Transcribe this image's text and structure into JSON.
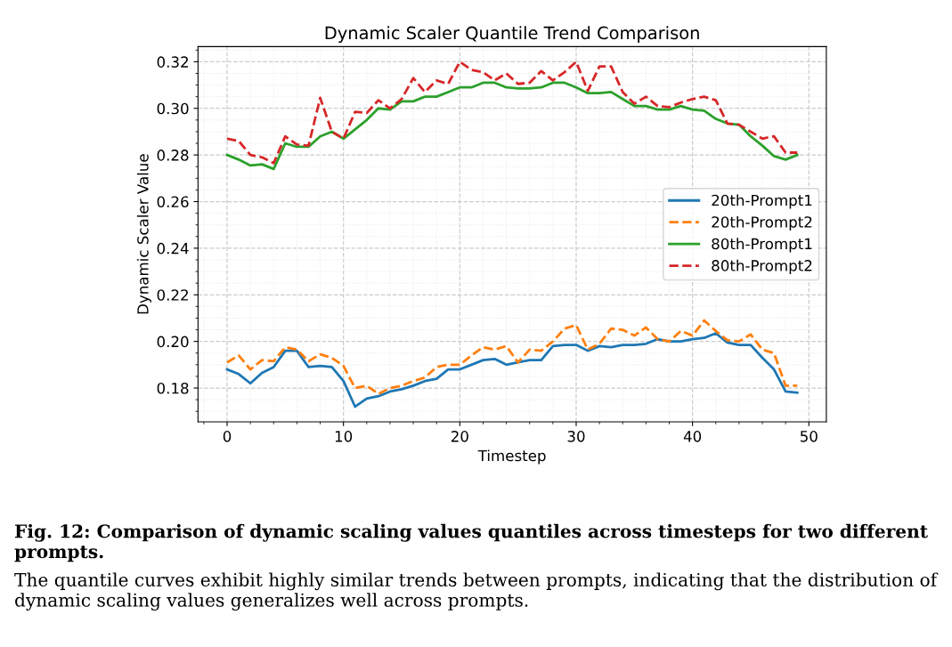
{
  "chart_data": {
    "type": "line",
    "title": "Dynamic Scaler Quantile Trend Comparison",
    "xlabel": "Timestep",
    "ylabel": "Dynamic Scaler Value",
    "x": [
      0,
      1,
      2,
      3,
      4,
      5,
      6,
      7,
      8,
      9,
      10,
      11,
      12,
      13,
      14,
      15,
      16,
      17,
      18,
      19,
      20,
      21,
      22,
      23,
      24,
      25,
      26,
      27,
      28,
      29,
      30,
      31,
      32,
      33,
      34,
      35,
      36,
      37,
      38,
      39,
      40,
      41,
      42,
      43,
      44,
      45,
      46,
      47,
      48,
      49
    ],
    "series": [
      {
        "name": "20th-Prompt1",
        "color": "#1f77b4",
        "line_style": "solid",
        "values": [
          0.188,
          0.186,
          0.182,
          0.1865,
          0.189,
          0.196,
          0.196,
          0.189,
          0.1895,
          0.189,
          0.183,
          0.172,
          0.1755,
          0.1765,
          0.1785,
          0.1795,
          0.181,
          0.183,
          0.184,
          0.188,
          0.188,
          0.19,
          0.192,
          0.1925,
          0.19,
          0.191,
          0.192,
          0.192,
          0.198,
          0.1985,
          0.1985,
          0.196,
          0.198,
          0.1975,
          0.1985,
          0.1985,
          0.199,
          0.201,
          0.2,
          0.2,
          0.201,
          0.2015,
          0.2035,
          0.1995,
          0.1985,
          0.1985,
          0.193,
          0.188,
          0.1785,
          0.178
        ]
      },
      {
        "name": "20th-Prompt2",
        "color": "#ff7f0e",
        "line_style": "dashed",
        "values": [
          0.191,
          0.194,
          0.188,
          0.192,
          0.1915,
          0.1975,
          0.1965,
          0.1915,
          0.1945,
          0.193,
          0.1895,
          0.18,
          0.181,
          0.1775,
          0.18,
          0.181,
          0.183,
          0.1845,
          0.189,
          0.19,
          0.19,
          0.194,
          0.1975,
          0.1965,
          0.198,
          0.191,
          0.1965,
          0.196,
          0.2,
          0.2055,
          0.207,
          0.1965,
          0.199,
          0.2055,
          0.205,
          0.2025,
          0.206,
          0.201,
          0.2,
          0.2045,
          0.2025,
          0.209,
          0.2045,
          0.2005,
          0.2,
          0.203,
          0.1965,
          0.195,
          0.181,
          0.181
        ]
      },
      {
        "name": "80th-Prompt1",
        "color": "#2ca02c",
        "line_style": "solid",
        "values": [
          0.28,
          0.278,
          0.2755,
          0.276,
          0.274,
          0.285,
          0.2835,
          0.2835,
          0.288,
          0.29,
          0.287,
          0.291,
          0.295,
          0.3,
          0.2995,
          0.303,
          0.303,
          0.305,
          0.305,
          0.307,
          0.309,
          0.309,
          0.311,
          0.311,
          0.309,
          0.3085,
          0.3085,
          0.309,
          0.311,
          0.311,
          0.309,
          0.3065,
          0.3065,
          0.307,
          0.304,
          0.301,
          0.301,
          0.2995,
          0.2995,
          0.301,
          0.2995,
          0.299,
          0.2955,
          0.2935,
          0.293,
          0.288,
          0.284,
          0.2795,
          0.278,
          0.28
        ]
      },
      {
        "name": "80th-Prompt2",
        "color": "#d62728",
        "line_style": "dashed",
        "values": [
          0.287,
          0.286,
          0.28,
          0.279,
          0.2765,
          0.288,
          0.2845,
          0.284,
          0.3045,
          0.29,
          0.287,
          0.2985,
          0.298,
          0.3035,
          0.3,
          0.304,
          0.313,
          0.307,
          0.312,
          0.3105,
          0.32,
          0.3165,
          0.3155,
          0.312,
          0.315,
          0.3105,
          0.311,
          0.316,
          0.312,
          0.3155,
          0.32,
          0.3075,
          0.318,
          0.318,
          0.307,
          0.302,
          0.305,
          0.301,
          0.3005,
          0.3025,
          0.304,
          0.305,
          0.3035,
          0.2935,
          0.293,
          0.29,
          0.287,
          0.288,
          0.281,
          0.281
        ]
      }
    ],
    "xlim": [
      -2.5,
      51.5
    ],
    "xticks": [
      0,
      10,
      20,
      30,
      40,
      50
    ],
    "ylim": [
      0.1655,
      0.3265
    ],
    "yticks": [
      {
        "value": 0.18,
        "label": "0.18"
      },
      {
        "value": 0.2,
        "label": "0.20"
      },
      {
        "value": 0.22,
        "label": "0.22"
      },
      {
        "value": 0.24,
        "label": "0.24"
      },
      {
        "value": 0.26,
        "label": "0.26"
      },
      {
        "value": 0.28,
        "label": "0.28"
      },
      {
        "value": 0.3,
        "label": "0.30"
      },
      {
        "value": 0.32,
        "label": "0.32"
      }
    ],
    "grid": true,
    "legend": "right",
    "marker": "none",
    "annotations": [
      "Fig. 12: Comparison of dynamic scaling values quantiles across timesteps for two different prompts.",
      "The quantile curves exhibit highly similar trends between prompts, indicating that the distribution of dynamic scaling values generalizes well across prompts."
    ]
  }
}
